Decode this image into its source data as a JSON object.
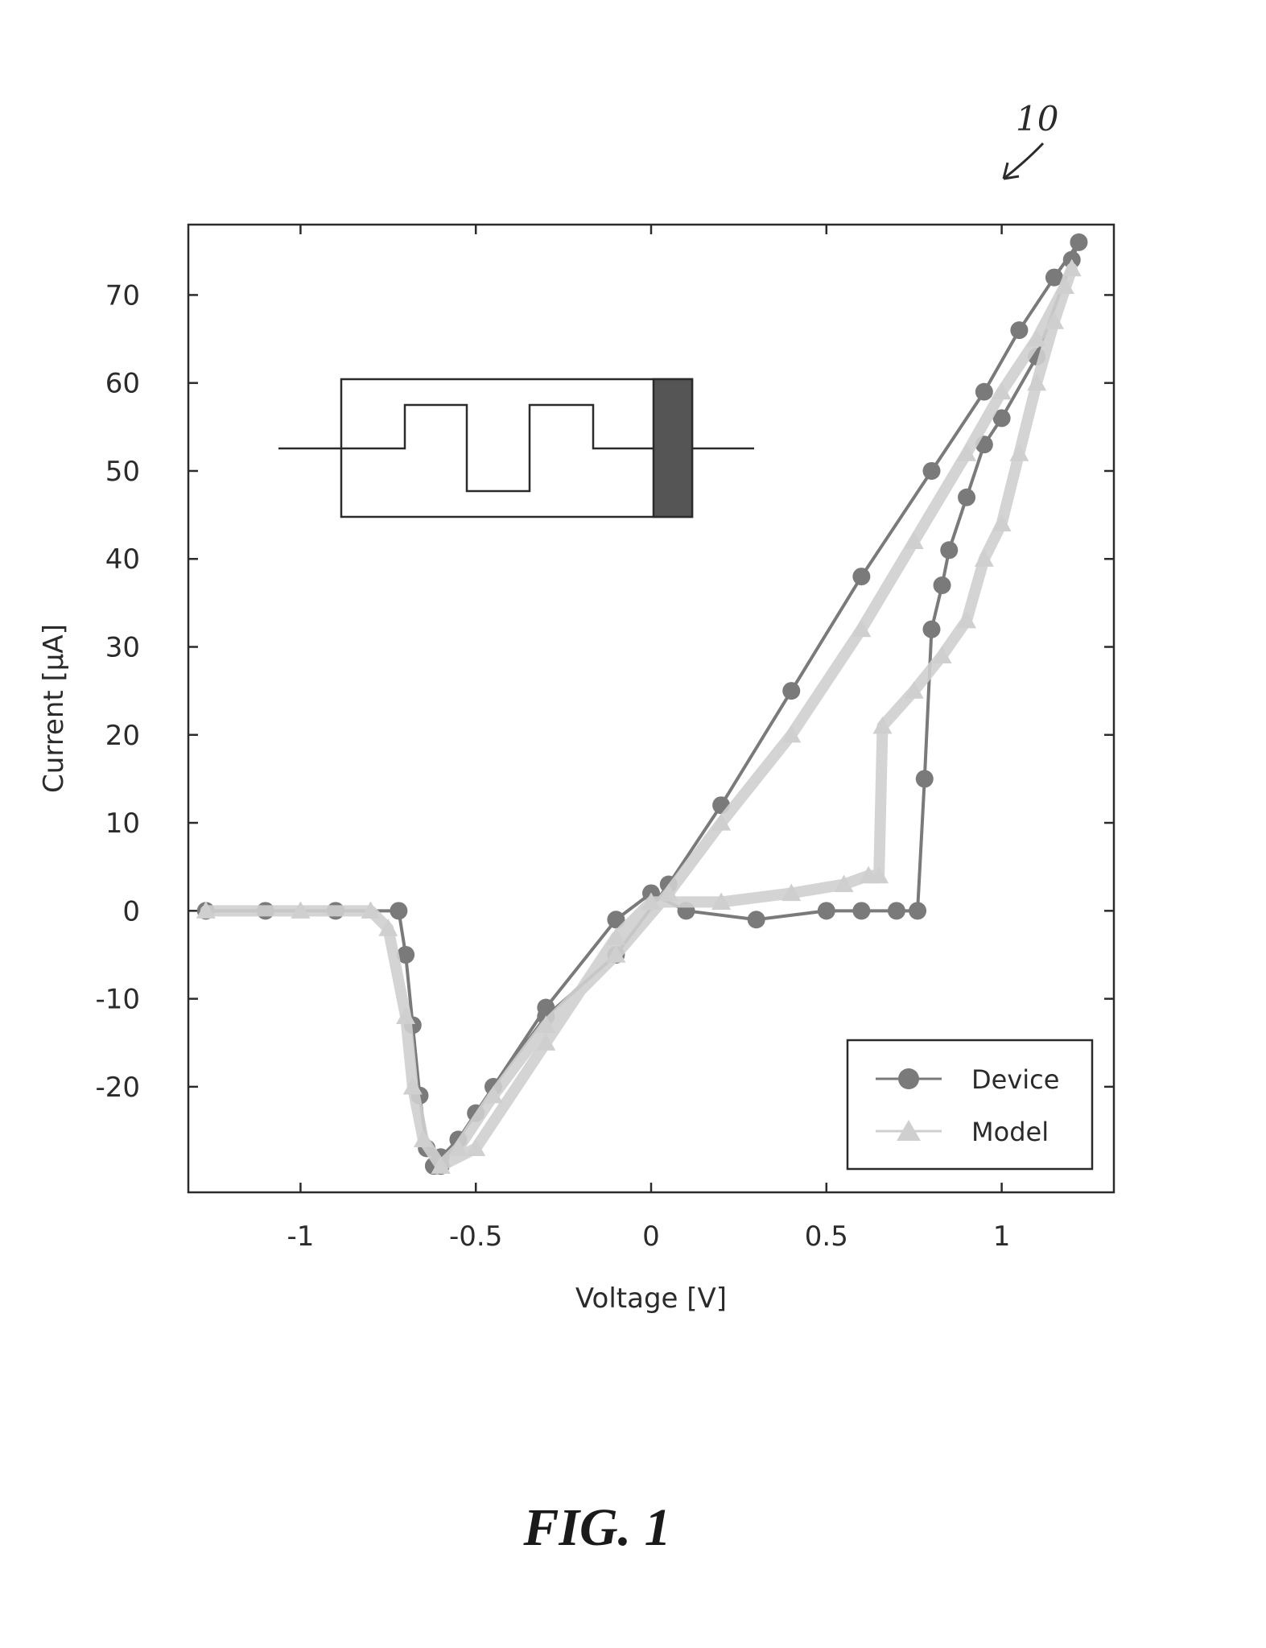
{
  "figure": {
    "caption": "FIG. 1",
    "reference_numeral": "10"
  },
  "colors": {
    "device": "#7a7a7a",
    "model": "#cfcfcf",
    "axis": "#2b2b2b",
    "memristor_band": "#555555"
  },
  "icons": {
    "inset": "memristor-symbol-icon",
    "reference_arrow": "curved-arrow-icon"
  },
  "chart_data": {
    "type": "line",
    "title": "",
    "xlabel": "Voltage [V]",
    "ylabel": "Current [μA]",
    "xlim": [
      -1.32,
      1.32
    ],
    "ylim": [
      -32,
      78
    ],
    "xticks": [
      -1,
      -0.5,
      0,
      0.5,
      1
    ],
    "xtick_labels": [
      "-1",
      "-0.5",
      "0",
      "0.5",
      "1"
    ],
    "yticks": [
      -20,
      -10,
      0,
      10,
      20,
      30,
      40,
      50,
      60,
      70
    ],
    "ytick_labels": [
      "-20",
      "-10",
      "0",
      "10",
      "20",
      "30",
      "40",
      "50",
      "60",
      "70"
    ],
    "grid": false,
    "legend_position": "bottom-right",
    "series": [
      {
        "name": "Device",
        "marker": "circle",
        "x": [
          -1.27,
          -1.1,
          -0.9,
          -0.72,
          -0.7,
          -0.68,
          -0.66,
          -0.64,
          -0.6,
          -0.5,
          -0.3,
          -0.1,
          0.0,
          0.1,
          0.3,
          0.5,
          0.6,
          0.7,
          0.76,
          0.78,
          0.8,
          0.83,
          0.85,
          0.9,
          0.95,
          1.0,
          1.1,
          1.2,
          1.22,
          1.15,
          1.05,
          0.95,
          0.8,
          0.6,
          0.4,
          0.2,
          0.05,
          -0.1,
          -0.3,
          -0.45,
          -0.55,
          -0.6,
          -0.62
        ],
        "y": [
          0,
          0,
          0,
          0,
          -5,
          -13,
          -21,
          -27,
          -29,
          -23,
          -11,
          -1,
          2,
          0,
          -1,
          0,
          0,
          0,
          0,
          15,
          32,
          37,
          41,
          47,
          53,
          56,
          63,
          74,
          76,
          72,
          66,
          59,
          50,
          38,
          25,
          12,
          3,
          -5,
          -12,
          -20,
          -26,
          -28,
          -29
        ]
      },
      {
        "name": "Model",
        "marker": "triangle",
        "x": [
          -1.27,
          -1.0,
          -0.8,
          -0.75,
          -0.7,
          -0.68,
          -0.65,
          -0.6,
          -0.5,
          -0.3,
          -0.1,
          0.0,
          0.2,
          0.4,
          0.55,
          0.62,
          0.65,
          0.66,
          0.75,
          0.83,
          0.9,
          0.95,
          1.0,
          1.05,
          1.1,
          1.15,
          1.2,
          1.18,
          1.1,
          1.0,
          0.9,
          0.75,
          0.6,
          0.4,
          0.2,
          0.05,
          -0.1,
          -0.3,
          -0.45,
          -0.55,
          -0.6
        ],
        "y": [
          0,
          0,
          0,
          -2,
          -12,
          -20,
          -26,
          -29,
          -27,
          -15,
          -3,
          1,
          1,
          2,
          3,
          4,
          4,
          21,
          25,
          29,
          33,
          40,
          44,
          52,
          60,
          67,
          73,
          71,
          65,
          59,
          52,
          42,
          32,
          20,
          10,
          2,
          -5,
          -13,
          -21,
          -27,
          -29
        ]
      }
    ]
  }
}
